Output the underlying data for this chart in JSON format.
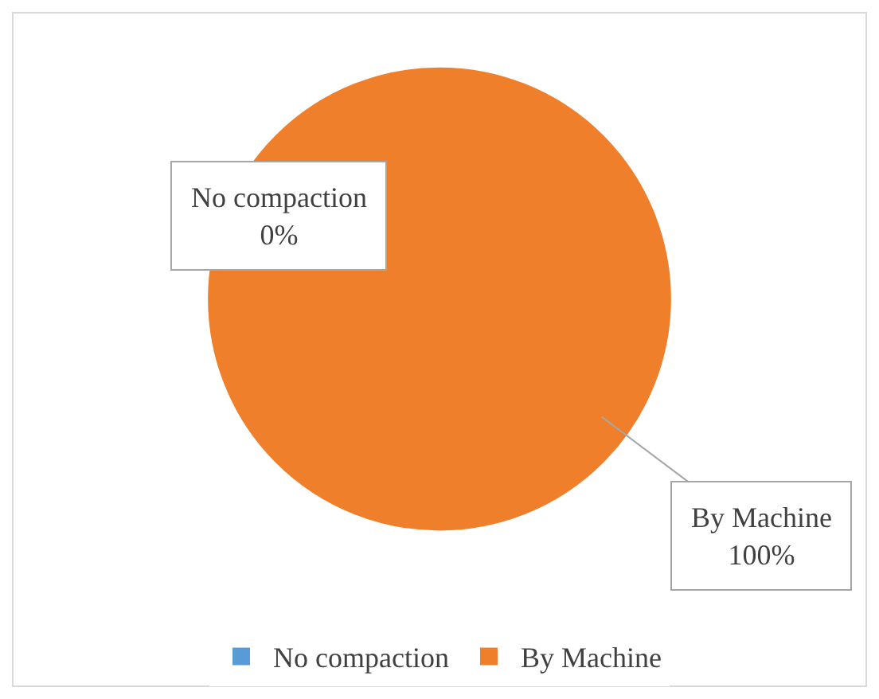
{
  "chart_data": {
    "type": "pie",
    "categories": [
      "No compaction",
      "By Machine"
    ],
    "values": [
      0,
      100
    ],
    "colors": [
      "#5b9bd5",
      "#f07f2c"
    ],
    "value_labels": [
      "0%",
      "100%"
    ],
    "legend": "bottom"
  }
}
